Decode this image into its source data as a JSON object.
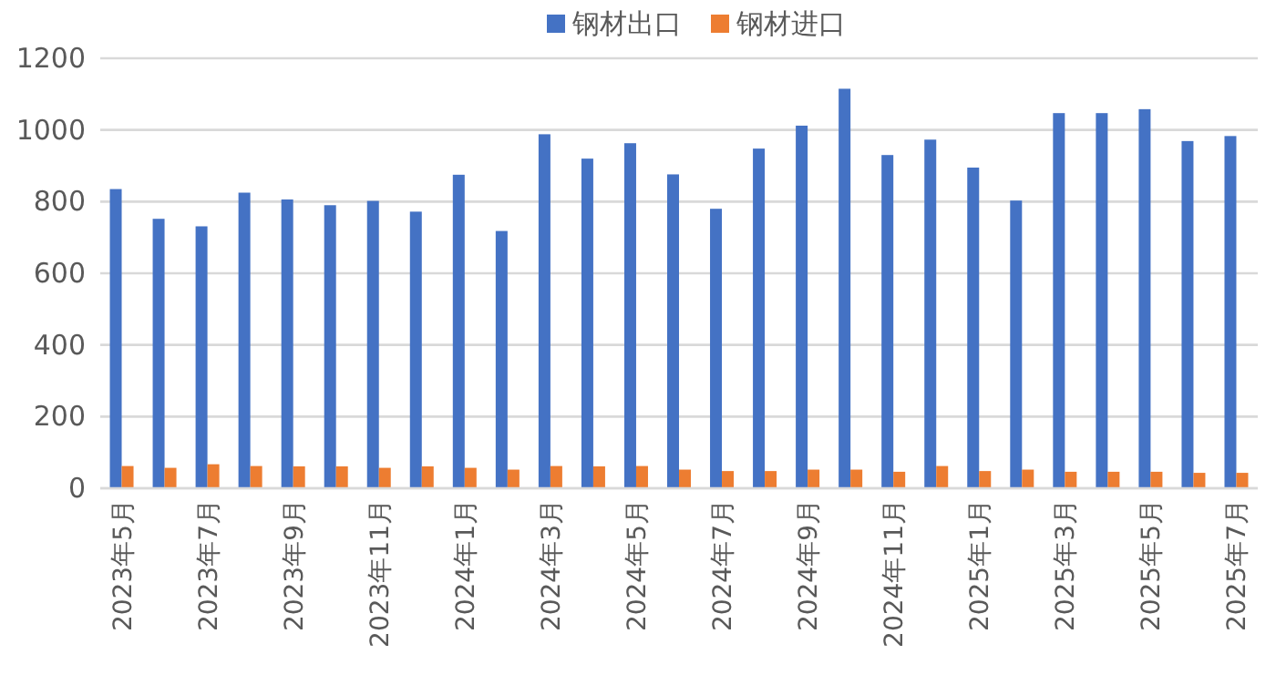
{
  "chart_data": {
    "type": "bar",
    "categories": [
      "2023年5月",
      null,
      "2023年7月",
      null,
      "2023年9月",
      null,
      "2023年11月",
      null,
      "2024年1月",
      null,
      "2024年3月",
      null,
      "2024年5月",
      null,
      "2024年7月",
      null,
      "2024年9月",
      null,
      "2024年11月",
      null,
      "2025年1月",
      null,
      "2025年3月",
      null,
      "2025年5月",
      null,
      "2025年7月"
    ],
    "series": [
      {
        "name": "钢材出口",
        "color": "#4472c4",
        "values": [
          835,
          752,
          731,
          825,
          806,
          790,
          802,
          772,
          875,
          718,
          988,
          920,
          963,
          876,
          780,
          948,
          1012,
          1115,
          930,
          973,
          895,
          803,
          1047,
          1047,
          1058,
          969,
          983
        ]
      },
      {
        "name": "钢材进口",
        "color": "#ed7d31",
        "values": [
          62,
          57,
          67,
          62,
          61,
          61,
          57,
          61,
          57,
          52,
          62,
          61,
          62,
          52,
          48,
          48,
          52,
          52,
          46,
          62,
          48,
          52,
          46,
          46,
          46,
          43,
          43
        ]
      }
    ],
    "ylim": [
      0,
      1200
    ],
    "yticks": [
      0,
      200,
      400,
      600,
      800,
      1000,
      1200
    ],
    "grid": "y",
    "legend": "top"
  }
}
